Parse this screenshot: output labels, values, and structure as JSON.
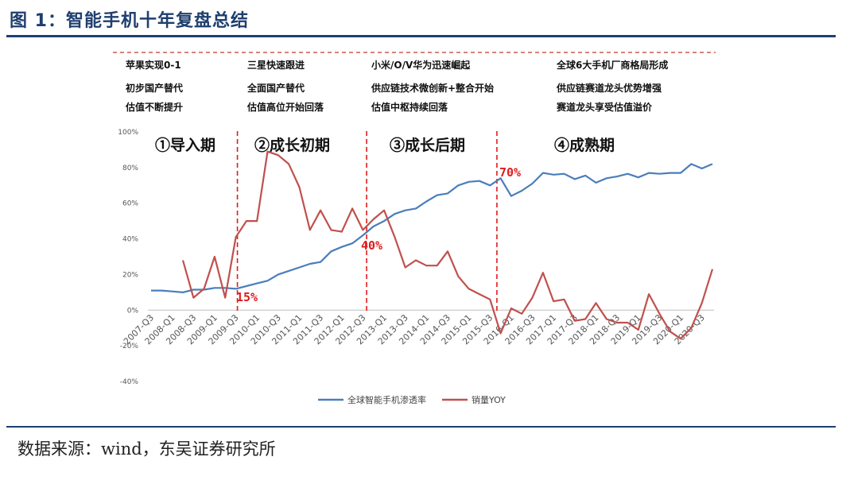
{
  "figure_title": "图 1：智能手机十年复盘总结",
  "source_note": "数据来源：wind，东吴证券研究所",
  "phases": [
    {
      "lines": [
        "苹果实现0-1",
        "初步国产替代",
        "估值不断提升"
      ]
    },
    {
      "lines": [
        "三星快速跟进",
        "全面国产替代",
        "估值高位开始回落"
      ]
    },
    {
      "lines": [
        "小米/O/V华为迅速崛起",
        "供应链技术微创新+整合开始",
        "估值中枢持续回落"
      ]
    },
    {
      "lines": [
        "全球6大手机厂商格局形成",
        "供应链赛道龙头优势增强",
        "赛道龙头享受估值溢价"
      ]
    }
  ],
  "stages": [
    "①导入期",
    "②成长初期",
    "③成长后期",
    "④成熟期"
  ],
  "annotations": [
    "15%",
    "40%",
    "70%"
  ],
  "colors": {
    "penetration": "#4a7ebb",
    "yoy": "#c0504d",
    "accent": "#e01b1b",
    "title": "#1f3f6e"
  },
  "chart_data": {
    "type": "line",
    "ylim": [
      -40,
      100
    ],
    "yticks": [
      "100%",
      "80%",
      "60%",
      "40%",
      "20%",
      "0%",
      "-20%",
      "-40%"
    ],
    "xtick_labels": [
      "2007-Q3",
      "2008-Q1",
      "2008-Q3",
      "2009-Q1",
      "2009-Q3",
      "2010-Q1",
      "2010-Q3",
      "2011-Q1",
      "2011-Q3",
      "2012-Q1",
      "2012-Q3",
      "2013-Q1",
      "2013-Q3",
      "2014-Q1",
      "2014-Q3",
      "2015-Q1",
      "2015-Q3",
      "2016-Q1",
      "2016-Q3",
      "2017-Q1",
      "2017-Q3",
      "2018-Q1",
      "2018-Q3",
      "2019-Q1",
      "2019-Q3",
      "2020-Q1",
      "2020-Q3"
    ],
    "x": [
      "2007-Q3",
      "2007-Q4",
      "2008-Q1",
      "2008-Q2",
      "2008-Q3",
      "2008-Q4",
      "2009-Q1",
      "2009-Q2",
      "2009-Q3",
      "2009-Q4",
      "2010-Q1",
      "2010-Q2",
      "2010-Q3",
      "2010-Q4",
      "2011-Q1",
      "2011-Q2",
      "2011-Q3",
      "2011-Q4",
      "2012-Q1",
      "2012-Q2",
      "2012-Q3",
      "2012-Q4",
      "2013-Q1",
      "2013-Q2",
      "2013-Q3",
      "2013-Q4",
      "2014-Q1",
      "2014-Q2",
      "2014-Q3",
      "2014-Q4",
      "2015-Q1",
      "2015-Q2",
      "2015-Q3",
      "2015-Q4",
      "2016-Q1",
      "2016-Q2",
      "2016-Q3",
      "2016-Q4",
      "2017-Q1",
      "2017-Q2",
      "2017-Q3",
      "2017-Q4",
      "2018-Q1",
      "2018-Q2",
      "2018-Q3",
      "2018-Q4",
      "2019-Q1",
      "2019-Q2",
      "2019-Q3",
      "2019-Q4",
      "2020-Q1",
      "2020-Q2",
      "2020-Q3",
      "2020-Q4"
    ],
    "series": [
      {
        "name": "全球智能手机渗透率",
        "values": [
          11,
          11,
          10.5,
          10,
          11.5,
          11.5,
          12.5,
          12.5,
          12,
          13.5,
          15,
          16.5,
          20,
          22,
          24,
          26,
          27,
          33,
          35.5,
          37.5,
          42,
          47,
          50,
          54,
          56,
          57,
          61,
          64.5,
          65.5,
          70,
          72,
          72.5,
          70,
          74,
          64,
          67,
          71,
          77,
          76,
          76.5,
          73.5,
          75.5,
          71.5,
          74,
          75,
          76.5,
          74.5,
          77,
          76.5,
          77,
          77,
          82,
          79.5,
          82
        ]
      },
      {
        "name": "销量YOY",
        "values": [
          null,
          null,
          null,
          28,
          7,
          12,
          30,
          7,
          41,
          50,
          50,
          89,
          87,
          82,
          69,
          45,
          56,
          45,
          44,
          57,
          45,
          51,
          56,
          41,
          24,
          28,
          25,
          25,
          33,
          19,
          12,
          9,
          6,
          -13,
          1,
          -2,
          7,
          21,
          5,
          6,
          -6,
          -5,
          4,
          -5,
          -7,
          -7,
          -11,
          9,
          -2,
          -12,
          -16,
          -10,
          4,
          23
        ]
      }
    ]
  }
}
